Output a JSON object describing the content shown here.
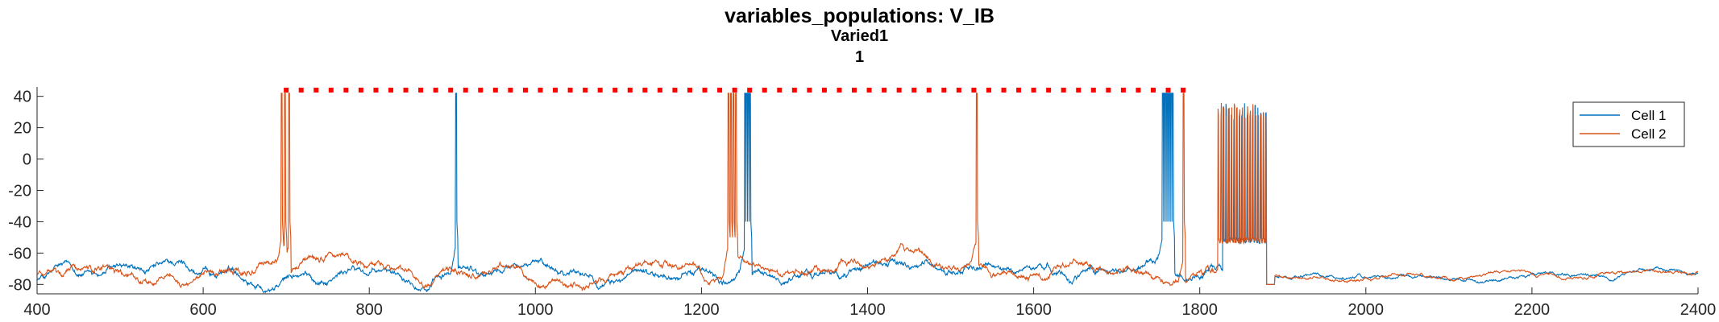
{
  "chart_data": {
    "type": "line",
    "title": "variables_populations: V_IB",
    "subtitle": "Varied1",
    "subtitle2": "1",
    "xlabel": "",
    "ylabel": "",
    "xlim": [
      400,
      2400
    ],
    "ylim": [
      -86,
      46
    ],
    "x_ticks": [
      400,
      600,
      800,
      1000,
      1200,
      1400,
      1600,
      1800,
      2000,
      2200,
      2400
    ],
    "y_ticks": [
      40,
      20,
      0,
      -20,
      -40,
      -60,
      -80
    ],
    "grid": false,
    "legend_position": "top-right",
    "series": [
      {
        "name": "Cell 1",
        "color": "#0072BD",
        "spike_times": [
          904,
          1252,
          1254,
          1256,
          1258,
          1755,
          1757,
          1759,
          1761,
          1763,
          1765,
          1767
        ],
        "depolarized_block": [
          1828,
          1880
        ],
        "description_baseline": -72
      },
      {
        "name": "Cell 2",
        "color": "#D95319",
        "spike_times": [
          694,
          698,
          703,
          1232,
          1235,
          1238,
          1241,
          1531,
          1780
        ],
        "depolarized_block": [
          1822,
          1880
        ],
        "description_baseline": -72
      }
    ],
    "raster_markers": {
      "color": "#FF0000",
      "y": 44,
      "x_start": 700,
      "x_end": 1780,
      "step": 18
    }
  }
}
